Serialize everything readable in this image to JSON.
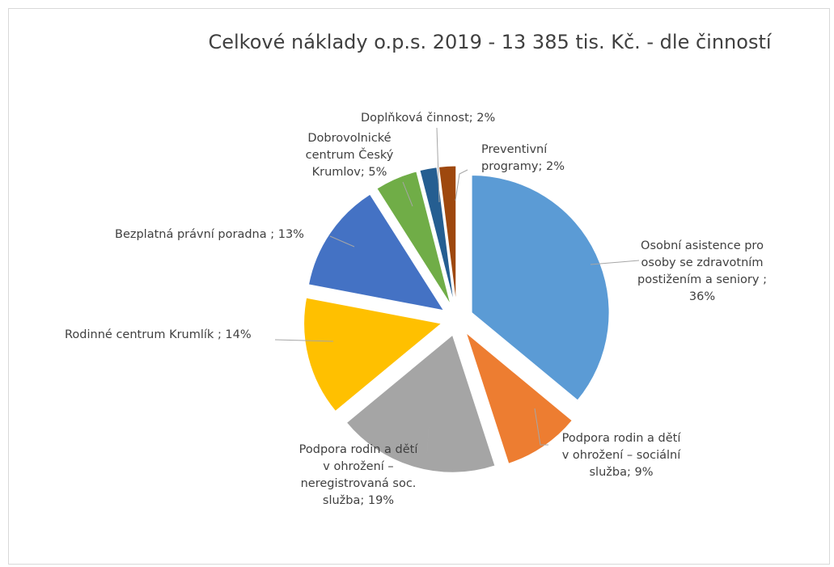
{
  "chart_data": {
    "type": "pie",
    "title": "Celkové náklady o.p.s. 2019 - 13 385 tis. Kč. - dle činností",
    "legend": "none",
    "slices": [
      {
        "label": "Osobní asistence pro osoby se zdravotním postižením a seniory",
        "value": 36,
        "label_text": [
          "Osobní asistence pro",
          "osoby se zdravotním",
          "postižením a seniory ;",
          "36%"
        ],
        "color": "#5b9bd5"
      },
      {
        "label": "Podpora rodin a dětí v ohrožení – sociální služba",
        "value": 9,
        "label_text": [
          "Podpora rodin a dětí",
          "v ohrožení – sociální",
          "služba; 9%"
        ],
        "color": "#ed7d31"
      },
      {
        "label": "Podpora rodin a dětí v ohrožení – neregistrovaná soc. služba",
        "value": 19,
        "label_text": [
          "Podpora rodin a dětí",
          "v ohrožení –",
          "neregistrovaná soc.",
          "služba; 19%"
        ],
        "color": "#a5a5a5"
      },
      {
        "label": "Rodinné centrum Krumlík",
        "value": 14,
        "label_text": [
          "Rodinné centrum Krumlík ; 14%"
        ],
        "color": "#ffc000"
      },
      {
        "label": "Bezplatná právní poradna",
        "value": 13,
        "label_text": [
          "Bezplatná právní poradna ; 13%"
        ],
        "color": "#4472c4"
      },
      {
        "label": "Dobrovolnické centrum Český Krumlov",
        "value": 5,
        "label_text": [
          "Dobrovolnické",
          "centrum Český",
          "Krumlov; 5%"
        ],
        "color": "#70ad47"
      },
      {
        "label": "Doplňková činnost",
        "value": 2,
        "label_text": [
          "Doplňková činnost; 2%"
        ],
        "color": "#255e91"
      },
      {
        "label": "Preventivní programy",
        "value": 2,
        "label_text": [
          "Preventivní",
          "programy; 2%"
        ],
        "color": "#9e480e"
      }
    ]
  }
}
